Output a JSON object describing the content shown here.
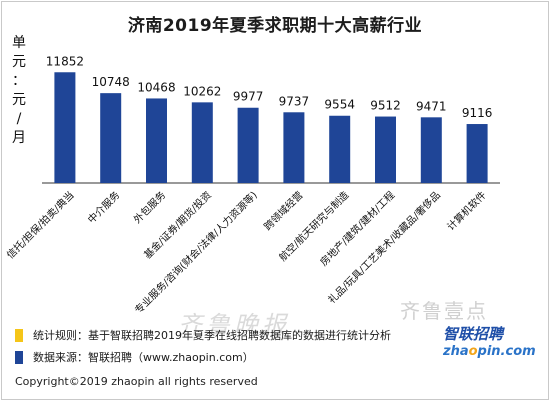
{
  "chart_data": {
    "type": "bar",
    "title": "济南2019年夏季求职期十大高薪行业",
    "ylabel": "单元：元/月",
    "categories": [
      "信托/担保/拍卖/典当",
      "中介服务",
      "外包服务",
      "基金/证券/期货/投资",
      "专业服务/咨询(财会/法律/人力资源等)",
      "跨领域经营",
      "航空/航天研究与制造",
      "房地产/建筑/建材/工程",
      "礼品/玩具/工艺美术/收藏品/奢侈品",
      "计算机软件"
    ],
    "values": [
      11852,
      10748,
      10468,
      10262,
      9977,
      9737,
      9554,
      9512,
      9471,
      9116
    ],
    "data_labels": [
      "11852",
      "10748",
      "10468",
      "10262",
      "9977",
      "9737",
      "9554",
      "9512",
      "9471",
      "9116"
    ],
    "ylim": [
      6000,
      12500
    ],
    "grid": false,
    "bar_color": "#1f4597"
  },
  "notes": [
    {
      "text": "统计规则：基于智联招聘2019年夏季在线招聘数据库的数据进行统计分析",
      "color": "#f5c518"
    },
    {
      "text": "数据来源：智联招聘（www.zhaopin.com）",
      "color": "#1f4597"
    }
  ],
  "copyright": "Copyright©2019 zhaopin all rights reserved",
  "watermark": {
    "text1": "齐鲁晚报",
    "text2": "齐鲁壹点"
  },
  "logo": {
    "line1": "智联招聘",
    "line2_a": "zha",
    "line2_o": "o",
    "line2_b": "pin.com"
  }
}
